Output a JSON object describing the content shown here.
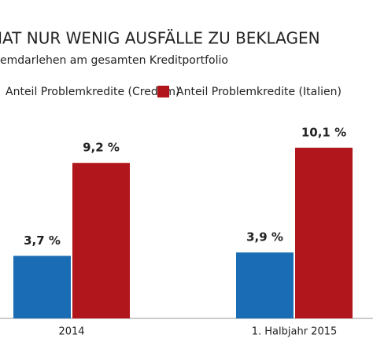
{
  "chart_data": {
    "type": "bar",
    "title": "HAT NUR WENIG AUSFÄLLE ZU BEKLAGEN",
    "subtitle": "emdarlehen am gesamten Kreditportfolio",
    "categories": [
      "2014",
      "1. Halbjahr 2015"
    ],
    "series": [
      {
        "name": "Anteil Problemkredite (Credem)",
        "color": "#1a6db4",
        "values": [
          3.7,
          3.9
        ],
        "value_labels": [
          "3,7 %",
          "3,9 %"
        ]
      },
      {
        "name": "Anteil Problemkredite (Italien)",
        "color": "#b0161b",
        "values": [
          9.2,
          10.1
        ],
        "value_labels": [
          "9,2 %",
          "10,1 %"
        ]
      }
    ],
    "ylim": [
      0,
      12
    ]
  }
}
